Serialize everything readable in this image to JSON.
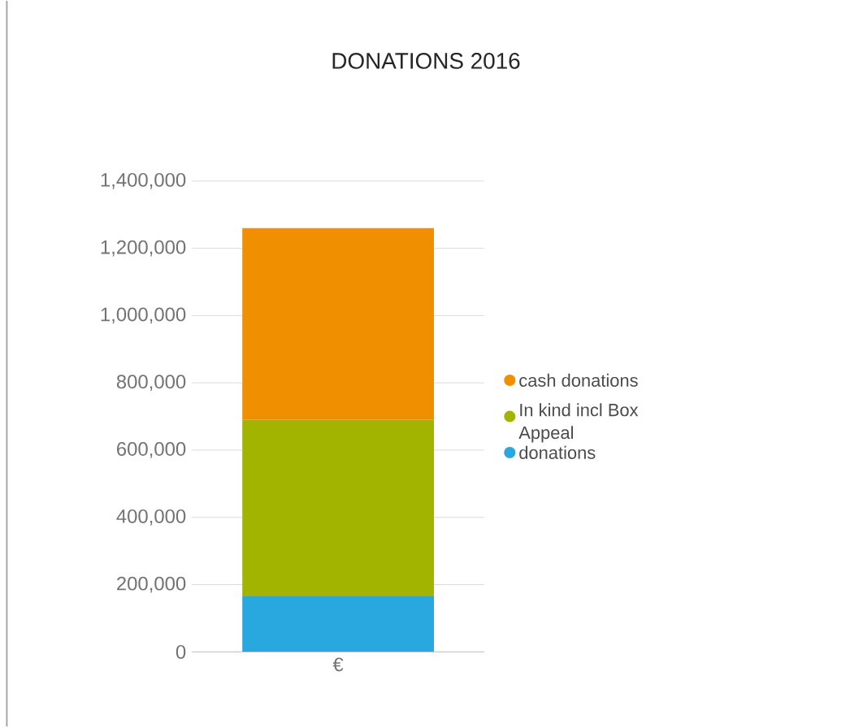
{
  "chart_data": {
    "type": "bar",
    "stacked": true,
    "title": "DONATIONS 2016",
    "categories": [
      "€"
    ],
    "series": [
      {
        "name": "donations",
        "color": "#29a8e0",
        "values": [
          165000
        ]
      },
      {
        "name": "In kind incl Box Appeal",
        "color": "#a2b300",
        "values": [
          525000
        ]
      },
      {
        "name": "cash donations",
        "color": "#f09000",
        "values": [
          570000
        ]
      }
    ],
    "ylim": [
      0,
      1400000
    ],
    "yticks": [
      0,
      {
        "value": 200000,
        "label": "200,000"
      },
      {
        "value": 400000,
        "label": "400,000"
      },
      {
        "value": 600000,
        "label": "600,000"
      },
      {
        "value": 800000,
        "label": "800,000"
      },
      {
        "value": 1000000,
        "label": "1,000,000"
      },
      {
        "value": 1200000,
        "label": "1,200,000"
      },
      {
        "value": 1400000,
        "label": "1,400,000"
      }
    ],
    "grid": "y",
    "legend": "right"
  }
}
